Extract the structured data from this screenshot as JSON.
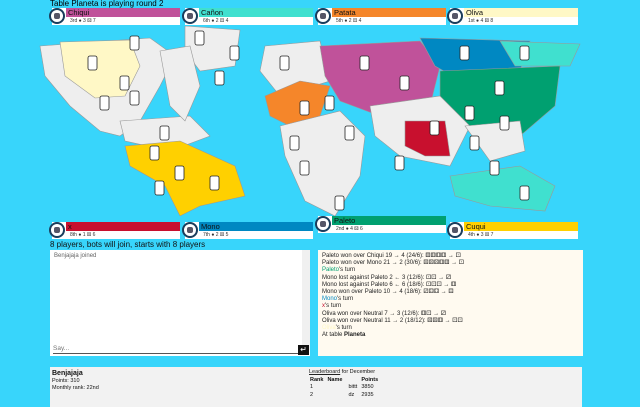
{
  "title": "Table Planeta is playing round 2",
  "players_top": [
    {
      "name": "Chiqui",
      "stats": "3rd ● 3 ⚄ 7",
      "color": "#c0529a"
    },
    {
      "name": "Cañon",
      "stats": "6th ● 2 ⚃ 4",
      "color": "#40e0cf"
    },
    {
      "name": "Patata",
      "stats": "5th ● 2 ⚃ 4",
      "color": "#f5862a"
    },
    {
      "name": "Oliva",
      "stats": "1st ● 4 ⚄ 8",
      "color": "#fff8c6"
    }
  ],
  "players_bottom": [
    {
      "name": "x",
      "stats": "8th ● 1 ⚄ 6",
      "color": "#c8102e"
    },
    {
      "name": "Mono",
      "stats": "7th ● 2 ⚄ 5",
      "color": "#0088c2"
    },
    {
      "name": "Paleto",
      "stats": "2nd ● 4 ⚄ 6",
      "color": "#00a070"
    },
    {
      "name": "Cuqui",
      "stats": "4th ● 3 ⚄ 7",
      "color": "#ffd000"
    }
  ],
  "info": "8 players, bots will join, starts with 8 players",
  "chat": {
    "messages": [
      "Benjajaja joined"
    ],
    "placeholder": "Say...",
    "send_icon": "enter-icon"
  },
  "log": [
    {
      "text": "Paleto won over Chiqui 19 → 4 (24/6): ⚅⚅⚅⚅ → ⚀"
    },
    {
      "text": "Paleto won over Mono 21 → 2 (30/6): ⚄⚄⚄⚅⚅ → ⚀"
    },
    {
      "who": "Paleto",
      "rest": "'s turn",
      "color": "#00a070"
    },
    {
      "text": "Mono lost against Paleto 2 ← 3 (12/6): ⚀⚀ → ⚂"
    },
    {
      "text": "Mono lost against Paleto 6 ← 6 (18/6): ⚀⚀⚀ → ⚅"
    },
    {
      "text": "Mono won over Paleto 10 → 4 (18/6): ⚂⚃⚃ → ⚃"
    },
    {
      "who": "Mono",
      "rest": "'s turn",
      "color": "#0088c2"
    },
    {
      "who": "x",
      "rest": "'s turn",
      "color": "#c8102e"
    },
    {
      "text": "Oliva won over Neutral 7 → 3 (12/6): ⚅⚀ → ⚂"
    },
    {
      "text": "Oliva won over Neutral 11 → 2 (18/12): ⚄⚄⚅ → ⚀⚀"
    },
    {
      "who": "Oliva",
      "rest": "'s turn",
      "color": "#fff8c6"
    },
    {
      "prefix": "At table ",
      "bold": "Planeta"
    }
  ],
  "user": {
    "name": "Benjajaja",
    "points": "Points: 310",
    "rank": "Monthly rank: 22nd"
  },
  "leaderboard": {
    "link": "Leaderboard",
    "suffix": " for December",
    "headers": [
      "Rank",
      "Name",
      "Points"
    ],
    "rows": [
      [
        "1",
        "bittt",
        "3850"
      ],
      [
        "2",
        "dz",
        "2935"
      ]
    ]
  },
  "colors": {
    "background": "#38d5fb",
    "neutral": "#eeeeee"
  }
}
